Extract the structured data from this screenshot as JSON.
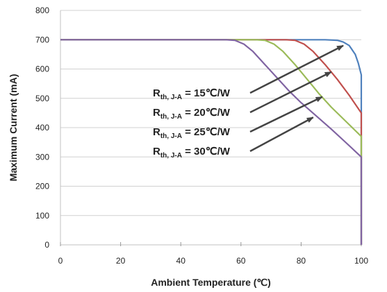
{
  "chart_data": {
    "type": "line",
    "xlabel": "Ambient Temperature (℃)",
    "ylabel": "Maximum Current (mA)",
    "xlim": [
      0,
      100
    ],
    "ylim": [
      0,
      800
    ],
    "xticks": [
      0,
      20,
      40,
      60,
      80,
      100
    ],
    "yticks": [
      0,
      100,
      200,
      300,
      400,
      500,
      600,
      700,
      800
    ],
    "grid": "horizontal",
    "series": [
      {
        "name": "Rth, J-A = 15℃/W",
        "color": "#4F81BD",
        "x": [
          0,
          50,
          88,
          92,
          94,
          96,
          98,
          99,
          100,
          100
        ],
        "y": [
          700,
          700,
          700,
          698,
          692,
          680,
          650,
          620,
          580,
          0
        ]
      },
      {
        "name": "Rth, J-A = 20℃/W",
        "color": "#C0504D",
        "x": [
          0,
          50,
          75,
          78,
          81,
          84,
          88,
          92,
          96,
          100,
          100
        ],
        "y": [
          700,
          700,
          700,
          698,
          685,
          660,
          615,
          565,
          510,
          450,
          0
        ]
      },
      {
        "name": "Rth, J-A = 25℃/W",
        "color": "#9BBB59",
        "x": [
          0,
          50,
          65,
          68,
          71,
          74,
          78,
          82,
          86,
          90,
          95,
          100,
          100
        ],
        "y": [
          700,
          700,
          700,
          698,
          685,
          660,
          615,
          565,
          515,
          470,
          420,
          370,
          0
        ]
      },
      {
        "name": "Rth, J-A = 30℃/W",
        "color": "#8064A2",
        "x": [
          0,
          50,
          55,
          58,
          61,
          64,
          68,
          72,
          76,
          80,
          85,
          90,
          95,
          100,
          100
        ],
        "y": [
          700,
          700,
          700,
          698,
          685,
          660,
          615,
          570,
          525,
          485,
          440,
          395,
          348,
          300,
          0
        ]
      }
    ],
    "annotations": [
      {
        "main": "R",
        "sub": "th, J-A",
        "rest": " = 15℃/W",
        "points_to": [
          94,
          680
        ]
      },
      {
        "main": "R",
        "sub": "th, J-A",
        "rest": " = 20℃/W",
        "points_to": [
          90,
          590
        ]
      },
      {
        "main": "R",
        "sub": "th, J-A",
        "rest": " = 25℃/W",
        "points_to": [
          87,
          505
        ]
      },
      {
        "main": "R",
        "sub": "th, J-A",
        "rest": " = 30℃/W",
        "points_to": [
          84,
          435
        ]
      }
    ],
    "tick_labels_x": [
      "0",
      "20",
      "40",
      "60",
      "80",
      "100"
    ],
    "tick_labels_y": [
      "0",
      "100",
      "200",
      "300",
      "400",
      "500",
      "600",
      "700",
      "800"
    ]
  }
}
